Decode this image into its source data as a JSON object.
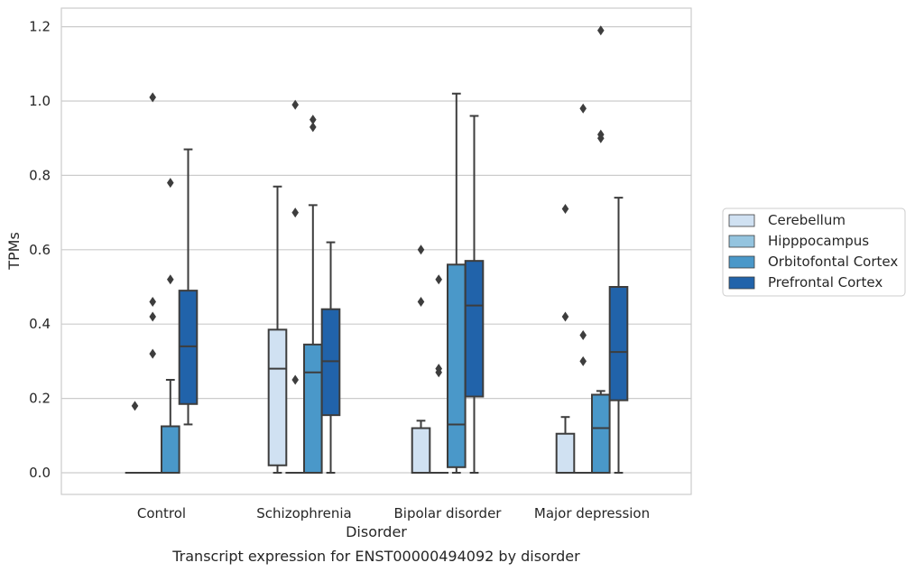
{
  "chart_data": {
    "type": "box",
    "xlabel": "Disorder",
    "ylabel": "TPMs",
    "caption": "Transcript expression for ENST00000494092 by disorder",
    "ylim": [
      -0.06,
      1.25
    ],
    "yticks": [
      "0.0",
      "0.2",
      "0.4",
      "0.6",
      "0.8",
      "1.0",
      "1.2"
    ],
    "grid": "horizontal",
    "legend_position": "right",
    "categories": [
      "Control",
      "Schizophrenia",
      "Bipolar disorder",
      "Major depression"
    ],
    "series": [
      {
        "name": "Cerebellum",
        "color": "#d0e1f2",
        "boxes": [
          {
            "q1": 0.0,
            "median": 0.0,
            "q3": 0.0,
            "whisker_low": 0.0,
            "whisker_high": 0.0,
            "outliers": [
              0.18
            ]
          },
          {
            "q1": 0.02,
            "median": 0.28,
            "q3": 0.385,
            "whisker_low": 0.0,
            "whisker_high": 0.77,
            "outliers": []
          },
          {
            "q1": 0.0,
            "median": 0.0,
            "q3": 0.12,
            "whisker_low": 0.0,
            "whisker_high": 0.14,
            "outliers": [
              0.46,
              0.6
            ]
          },
          {
            "q1": 0.0,
            "median": 0.0,
            "q3": 0.105,
            "whisker_low": 0.0,
            "whisker_high": 0.15,
            "outliers": [
              0.42,
              0.71
            ]
          }
        ]
      },
      {
        "name": "Hipppocampus",
        "color": "#94c4df",
        "boxes": [
          {
            "q1": 0.0,
            "median": 0.0,
            "q3": 0.0,
            "whisker_low": 0.0,
            "whisker_high": 0.0,
            "outliers": [
              0.32,
              0.42,
              0.46,
              1.01
            ]
          },
          {
            "q1": 0.0,
            "median": 0.0,
            "q3": 0.0,
            "whisker_low": 0.0,
            "whisker_high": 0.0,
            "outliers": [
              0.25,
              0.7,
              0.99
            ]
          },
          {
            "q1": 0.0,
            "median": 0.0,
            "q3": 0.0,
            "whisker_low": 0.0,
            "whisker_high": 0.0,
            "outliers": [
              0.27,
              0.28,
              0.52
            ]
          },
          {
            "q1": 0.0,
            "median": 0.0,
            "q3": 0.0,
            "whisker_low": 0.0,
            "whisker_high": 0.0,
            "outliers": [
              0.3,
              0.37,
              0.98
            ]
          }
        ]
      },
      {
        "name": "Orbitofontal Cortex",
        "color": "#4a98c9",
        "boxes": [
          {
            "q1": 0.0,
            "median": 0.0,
            "q3": 0.125,
            "whisker_low": 0.0,
            "whisker_high": 0.25,
            "outliers": [
              0.52,
              0.78
            ]
          },
          {
            "q1": 0.0,
            "median": 0.27,
            "q3": 0.345,
            "whisker_low": 0.0,
            "whisker_high": 0.72,
            "outliers": [
              0.93,
              0.95
            ]
          },
          {
            "q1": 0.015,
            "median": 0.13,
            "q3": 0.56,
            "whisker_low": 0.0,
            "whisker_high": 1.02,
            "outliers": []
          },
          {
            "q1": 0.0,
            "median": 0.12,
            "q3": 0.21,
            "whisker_low": 0.0,
            "whisker_high": 0.22,
            "outliers": [
              0.9,
              0.91,
              1.19
            ]
          }
        ]
      },
      {
        "name": "Prefrontal Cortex",
        "color": "#2163aa",
        "boxes": [
          {
            "q1": 0.185,
            "median": 0.34,
            "q3": 0.49,
            "whisker_low": 0.13,
            "whisker_high": 0.87,
            "outliers": []
          },
          {
            "q1": 0.155,
            "median": 0.3,
            "q3": 0.44,
            "whisker_low": 0.0,
            "whisker_high": 0.62,
            "outliers": []
          },
          {
            "q1": 0.205,
            "median": 0.45,
            "q3": 0.57,
            "whisker_low": 0.0,
            "whisker_high": 0.96,
            "outliers": []
          },
          {
            "q1": 0.195,
            "median": 0.325,
            "q3": 0.5,
            "whisker_low": 0.0,
            "whisker_high": 0.74,
            "outliers": []
          }
        ]
      }
    ]
  }
}
